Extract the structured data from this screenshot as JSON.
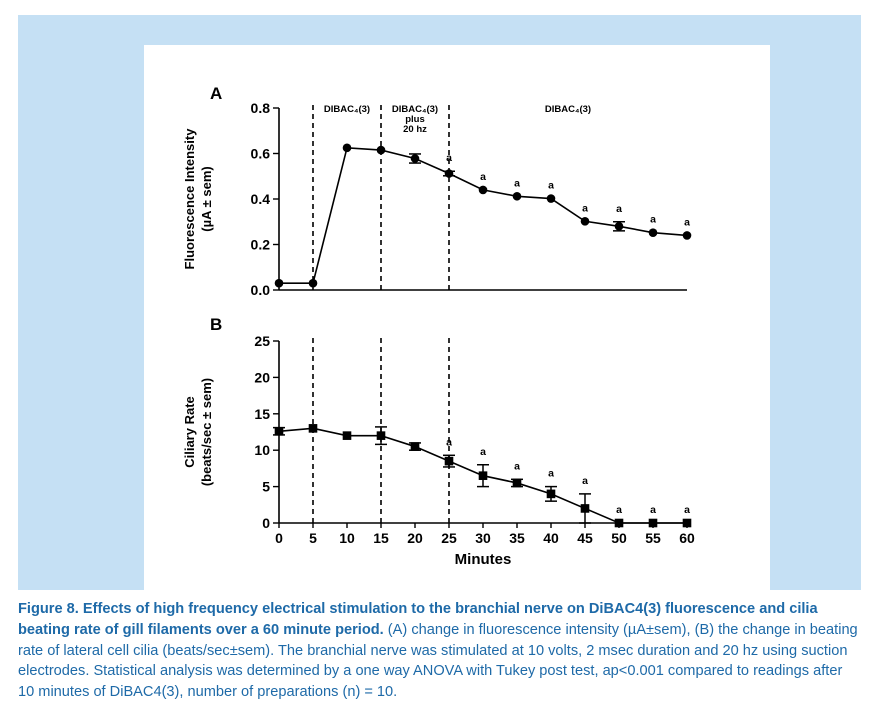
{
  "chart_data": [
    {
      "type": "line",
      "panel": "A",
      "ylabel": "Fluorescence Intensity",
      "ylabel_unit": "(µA ± sem)",
      "ylim": [
        0,
        0.8
      ],
      "yticks": [
        0.0,
        0.2,
        0.4,
        0.6,
        0.8
      ],
      "ytick_labels": [
        "0.0",
        "0.2",
        "0.4",
        "0.6",
        "0.8"
      ],
      "marker": "circle",
      "x": [
        0,
        5,
        10,
        15,
        20,
        25,
        30,
        35,
        40,
        45,
        50,
        55,
        60
      ],
      "values": [
        0.03,
        0.03,
        0.625,
        0.615,
        0.578,
        0.512,
        0.44,
        0.412,
        0.402,
        0.302,
        0.28,
        0.252,
        0.24
      ],
      "errors": [
        0,
        0,
        0,
        0,
        0.02,
        0.01,
        0,
        0,
        0,
        0,
        0.02,
        0,
        0
      ],
      "significant": [
        false,
        false,
        false,
        false,
        false,
        true,
        true,
        true,
        true,
        true,
        true,
        true,
        true
      ],
      "sig_label": "a",
      "phase_lines": [
        5,
        15,
        25
      ],
      "phases": [
        {
          "label": "DIBAC₄(3)",
          "lines": [
            "DIBAC₄(3)"
          ],
          "x": 10
        },
        {
          "label": "DIBAC₄(3) plus 20 hz",
          "lines": [
            "DIBAC₄(3)",
            "plus",
            "20 hz"
          ],
          "x": 20
        },
        {
          "label": "DIBAC₄(3)",
          "lines": [
            "DIBAC₄(3)"
          ],
          "x": 42.5
        }
      ]
    },
    {
      "type": "line",
      "panel": "B",
      "ylabel": "Ciliary Rate",
      "ylabel_unit": "(beats/sec ± sem)",
      "ylim": [
        0,
        25
      ],
      "yticks": [
        0,
        5,
        10,
        15,
        20,
        25
      ],
      "ytick_labels": [
        "0",
        "5",
        "10",
        "15",
        "20",
        "25"
      ],
      "marker": "square",
      "x": [
        0,
        5,
        10,
        15,
        20,
        25,
        30,
        35,
        40,
        45,
        50,
        55,
        60
      ],
      "values": [
        12.6,
        13.0,
        12.0,
        12.0,
        10.5,
        8.5,
        6.5,
        5.5,
        4.0,
        2.0,
        0,
        0,
        0
      ],
      "errors": [
        0.5,
        0,
        0,
        1.2,
        0.5,
        0.8,
        1.5,
        0.5,
        1.0,
        2.0,
        0,
        0,
        0
      ],
      "significant": [
        false,
        false,
        false,
        false,
        false,
        true,
        true,
        true,
        true,
        true,
        true,
        true,
        true
      ],
      "sig_label": "a",
      "phase_lines": [
        5,
        15,
        25
      ],
      "xlabel": "Minutes",
      "xticks": [
        0,
        5,
        10,
        15,
        20,
        25,
        30,
        35,
        40,
        45,
        50,
        55,
        60
      ],
      "xtick_labels": [
        "0",
        "5",
        "10",
        "15",
        "20",
        "25",
        "30",
        "35",
        "40",
        "45",
        "50",
        "55",
        "60"
      ]
    }
  ],
  "caption": {
    "bold": "Figure 8. Effects of high frequency electrical stimulation to the branchial nerve on DiBAC4(3) fluorescence and cilia beating rate of gill filaments over a 60 minute period.",
    "body": " (A) change in fluorescence intensity (µA±sem), (B) the change in beating rate of lateral cell cilia (beats/sec±sem). The branchial nerve was stimulated at 10 volts, 2 msec duration and 20 hz using suction electrodes. Statistical analysis was determined by a one way ANOVA with Tukey post test, ap<0.001 compared to readings after 10 minutes of DiBAC4(3), number of preparations (n) = 10."
  },
  "colors": {
    "panel_bg": "#c5e0f4",
    "caption_text": "#1e6aa8",
    "plot": "#000000"
  }
}
